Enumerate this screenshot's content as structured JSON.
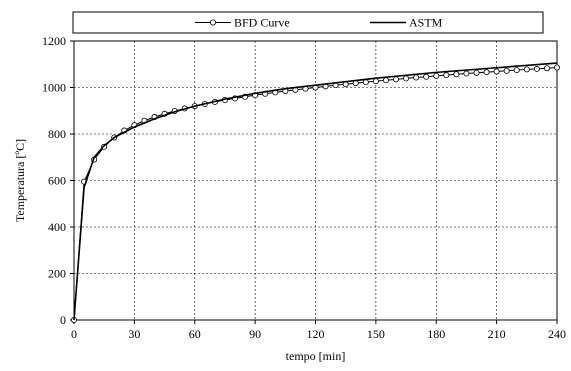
{
  "chart_data": {
    "type": "line",
    "title": "",
    "xlabel": "tempo [min]",
    "ylabel": "Temperatura [ºC]",
    "xlim": [
      0,
      240
    ],
    "ylim": [
      0,
      1200
    ],
    "xticks": [
      0,
      30,
      60,
      90,
      120,
      150,
      180,
      210,
      240
    ],
    "yticks": [
      0,
      200,
      400,
      600,
      800,
      1000,
      1200
    ],
    "grid": true,
    "legend_position": "top",
    "series": [
      {
        "name": "BFD Curve",
        "style": "line-with-open-circles",
        "color": "#000000",
        "points": [
          [
            0,
            0
          ],
          [
            5,
            595
          ],
          [
            10,
            690
          ],
          [
            15,
            745
          ],
          [
            20,
            785
          ],
          [
            25,
            815
          ],
          [
            30,
            838
          ],
          [
            35,
            857
          ],
          [
            40,
            873
          ],
          [
            45,
            887
          ],
          [
            50,
            899
          ],
          [
            55,
            910
          ],
          [
            60,
            920
          ],
          [
            65,
            929
          ],
          [
            70,
            938
          ],
          [
            75,
            946
          ],
          [
            80,
            953
          ],
          [
            85,
            960
          ],
          [
            90,
            967
          ],
          [
            95,
            973
          ],
          [
            100,
            979
          ],
          [
            105,
            985
          ],
          [
            110,
            990
          ],
          [
            115,
            995
          ],
          [
            120,
            1000
          ],
          [
            125,
            1005
          ],
          [
            130,
            1010
          ],
          [
            135,
            1014
          ],
          [
            140,
            1019
          ],
          [
            145,
            1023
          ],
          [
            150,
            1027
          ],
          [
            155,
            1031
          ],
          [
            160,
            1035
          ],
          [
            165,
            1039
          ],
          [
            170,
            1043
          ],
          [
            175,
            1046
          ],
          [
            180,
            1050
          ],
          [
            185,
            1053
          ],
          [
            190,
            1057
          ],
          [
            195,
            1060
          ],
          [
            200,
            1063
          ],
          [
            205,
            1066
          ],
          [
            210,
            1069
          ],
          [
            215,
            1072
          ],
          [
            220,
            1075
          ],
          [
            225,
            1078
          ],
          [
            230,
            1080
          ],
          [
            235,
            1083
          ],
          [
            240,
            1086
          ]
        ]
      },
      {
        "name": "ASTM",
        "style": "line",
        "color": "#000000",
        "points": [
          [
            0,
            0
          ],
          [
            5,
            570
          ],
          [
            10,
            700
          ],
          [
            15,
            750
          ],
          [
            20,
            785
          ],
          [
            30,
            830
          ],
          [
            40,
            865
          ],
          [
            50,
            895
          ],
          [
            60,
            920
          ],
          [
            75,
            950
          ],
          [
            90,
            975
          ],
          [
            105,
            995
          ],
          [
            120,
            1010
          ],
          [
            150,
            1040
          ],
          [
            180,
            1065
          ],
          [
            210,
            1085
          ],
          [
            240,
            1105
          ]
        ]
      }
    ]
  }
}
